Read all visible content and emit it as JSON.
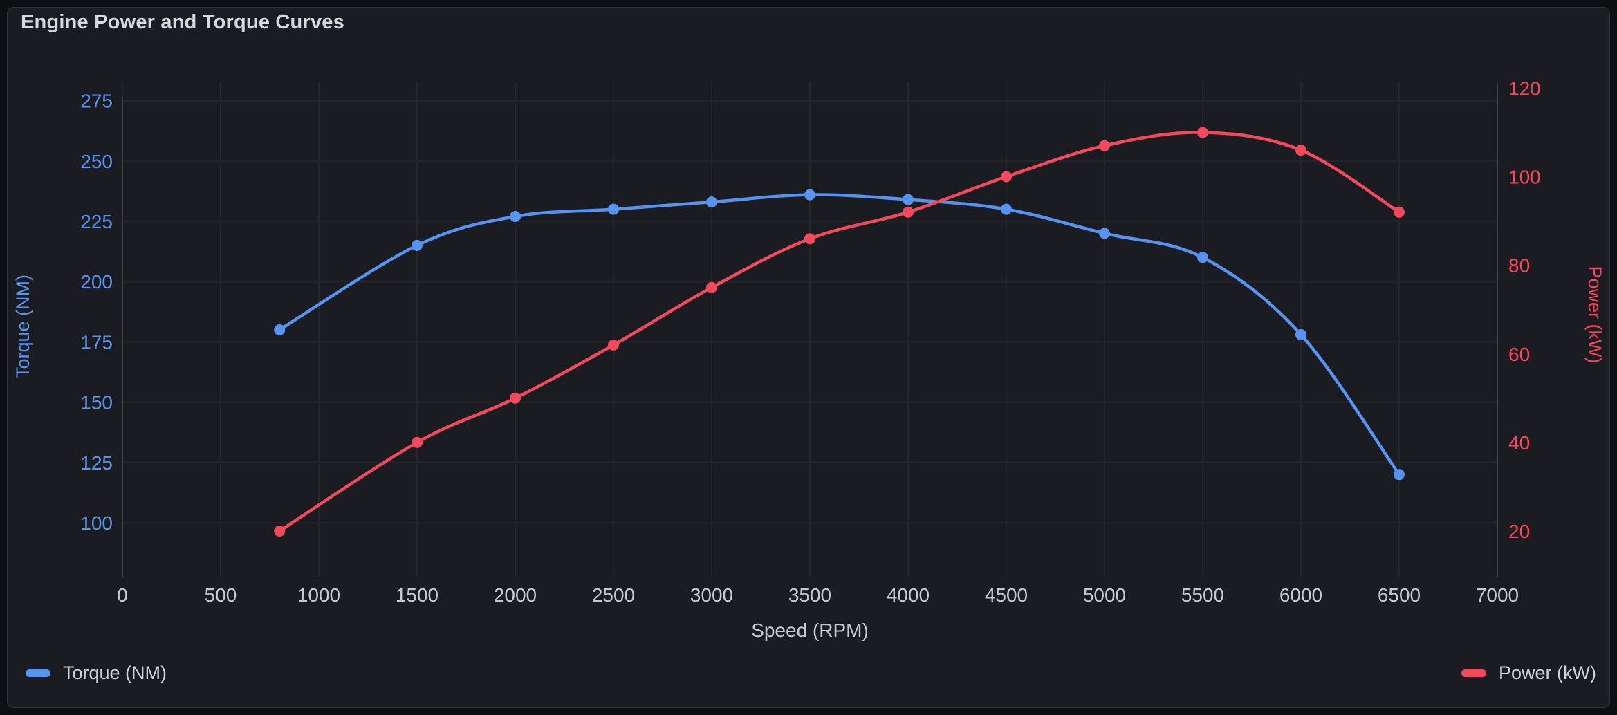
{
  "panel": {
    "title": "Engine Power and Torque Curves"
  },
  "colors": {
    "torque_blue": "#5794f2",
    "power_red": "#f2495c",
    "panel_bg": "#1a1c21",
    "page_bg": "#0e0f12",
    "panel_border": "#30333a",
    "gridline": "#24262c",
    "axis_line": "#3e4249",
    "x_tick_text": "#c8c9ce",
    "title_text": "#d8d9de",
    "legend_text": "#d0d1d7"
  },
  "legend": {
    "items": [
      {
        "label": "Torque (NM)",
        "color": "#5794f2"
      },
      {
        "label": "Power (kW)",
        "color": "#f2495c"
      }
    ]
  },
  "chart_data": {
    "type": "line",
    "title": "Engine Power and Torque Curves",
    "xlabel": "Speed (RPM)",
    "x": [
      800,
      1500,
      2000,
      2500,
      3000,
      3500,
      4000,
      4500,
      5000,
      5500,
      6000,
      6500
    ],
    "x_ticks": [
      0,
      500,
      1000,
      1500,
      2000,
      2500,
      3000,
      3500,
      4000,
      4500,
      5000,
      5500,
      6000,
      6500,
      7000
    ],
    "x_range": [
      0,
      7000
    ],
    "grid": true,
    "legend_position": "bottom",
    "series": [
      {
        "name": "Torque (NM)",
        "axis": "left",
        "color": "#5794f2",
        "values": [
          180,
          215,
          227,
          230,
          233,
          236,
          234,
          230,
          220,
          210,
          178,
          120
        ]
      },
      {
        "name": "Power (kW)",
        "axis": "right",
        "color": "#f2495c",
        "values": [
          20,
          40,
          50,
          62,
          75,
          86,
          92,
          100,
          107,
          110,
          106,
          92
        ]
      }
    ],
    "left_axis": {
      "label": "Torque (NM)",
      "ticks": [
        100,
        125,
        150,
        175,
        200,
        225,
        250,
        275
      ],
      "color": "#5794f2"
    },
    "right_axis": {
      "label": "Power (kW)",
      "ticks": [
        20,
        40,
        60,
        80,
        100,
        120
      ],
      "color": "#f2495c"
    }
  }
}
